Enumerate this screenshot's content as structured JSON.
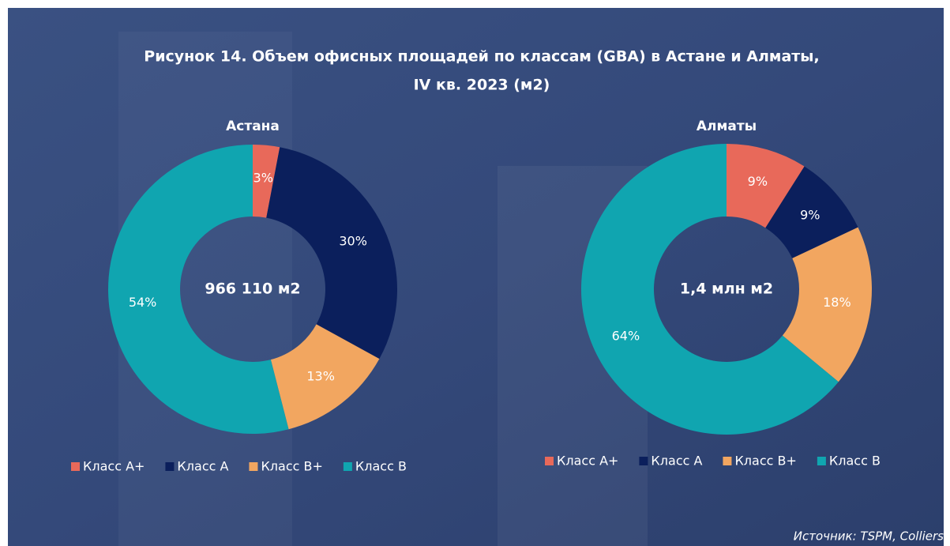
{
  "title": [
    "Рисунок 14. Объем офисных площадей по классам (GBA) в Астане и Алматы,",
    "IV кв. 2023 (м2)"
  ],
  "source": "Источник: TSPM, Colliers",
  "chart_data": [
    {
      "type": "pie",
      "title": "Астана",
      "center_label": "966 110 м2",
      "categories": [
        "Класс А+",
        "Класс А",
        "Класс B+",
        "Класс B"
      ],
      "values": [
        3,
        30,
        13,
        54
      ],
      "value_labels": [
        "3%",
        "30%",
        "13%",
        "54%"
      ],
      "colors": [
        "#e8695a",
        "#0b1f5c",
        "#f2a660",
        "#10a5b0"
      ]
    },
    {
      "type": "pie",
      "title": "Алматы",
      "center_label": "1,4 млн м2",
      "categories": [
        "Класс А+",
        "Класс А",
        "Класс B+",
        "Класс B"
      ],
      "values": [
        9,
        9,
        18,
        64
      ],
      "value_labels": [
        "9%",
        "9%",
        "18%",
        "64%"
      ],
      "colors": [
        "#e8695a",
        "#0b1f5c",
        "#f2a660",
        "#10a5b0"
      ]
    }
  ]
}
